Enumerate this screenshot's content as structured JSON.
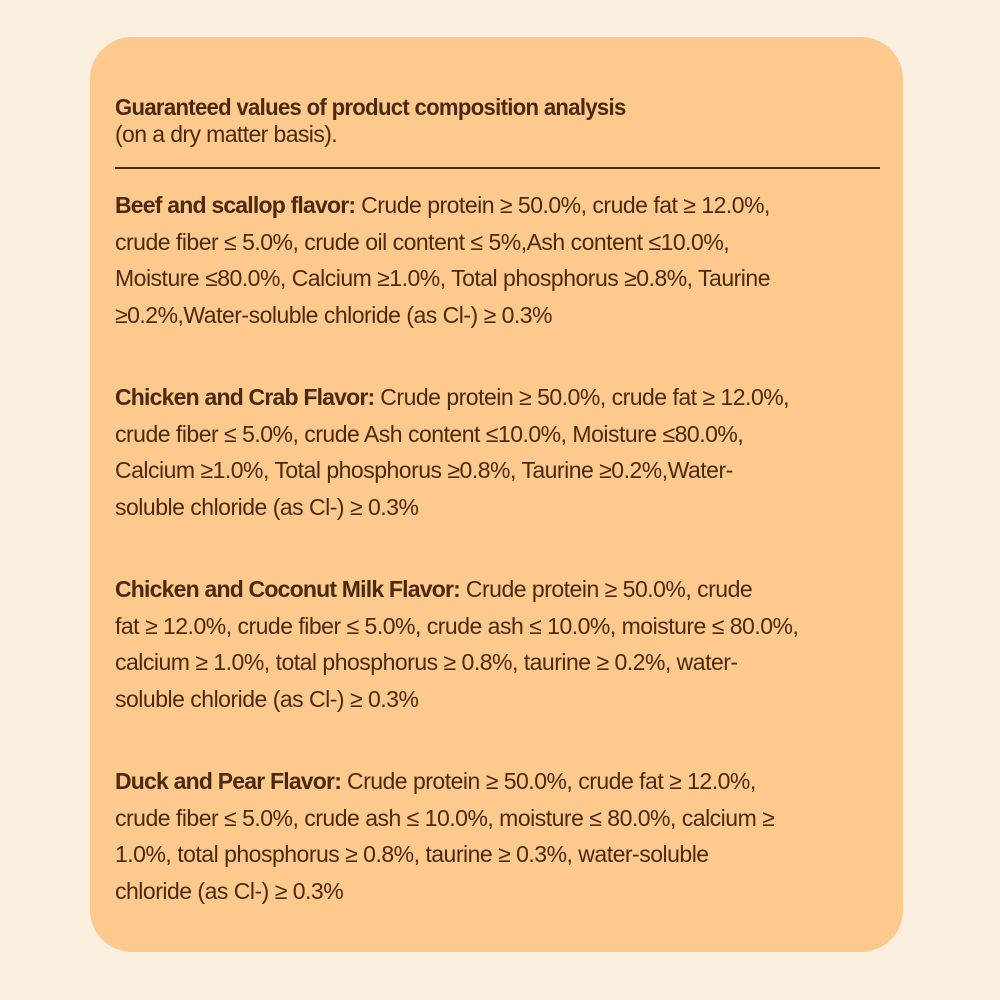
{
  "header": {
    "title": "Guaranteed values of product composition analysis",
    "subtitle": "(on a dry matter basis)."
  },
  "colors": {
    "background": "#fbefe0",
    "card": "#fdc98d",
    "text": "#4a2a10"
  },
  "sections": [
    {
      "label": "Beef and scallop flavor:",
      "lines": [
        " Crude protein ≥ 50.0%, crude fat ≥ 12.0%,",
        "crude fiber ≤ 5.0%, crude oil content ≤ 5%,Ash content ≤10.0%,",
        "Moisture ≤80.0%, Calcium ≥1.0%, Total phosphorus ≥0.8%, Taurine",
        "≥0.2%,Water-soluble chloride (as Cl-) ≥ 0.3%"
      ]
    },
    {
      "label": "Chicken and Crab Flavor:",
      "lines": [
        " Crude protein ≥ 50.0%, crude fat ≥ 12.0%,",
        "crude fiber ≤ 5.0%, crude Ash content ≤10.0%, Moisture ≤80.0%,",
        "Calcium ≥1.0%, Total phosphorus ≥0.8%, Taurine ≥0.2%,Water-",
        "soluble chloride (as Cl-) ≥ 0.3%"
      ]
    },
    {
      "label": "Chicken and Coconut Milk Flavor:",
      "lines": [
        " Crude protein ≥ 50.0%, crude",
        "fat ≥ 12.0%, crude fiber ≤ 5.0%, crude ash ≤ 10.0%, moisture ≤ 80.0%,",
        "calcium ≥ 1.0%, total phosphorus ≥ 0.8%, taurine ≥ 0.2%, water-",
        "soluble chloride (as Cl-) ≥ 0.3%"
      ]
    },
    {
      "label": "Duck and Pear Flavor:",
      "lines": [
        " Crude protein ≥ 50.0%, crude fat ≥ 12.0%,",
        "crude fiber ≤ 5.0%, crude ash ≤ 10.0%, moisture ≤ 80.0%, calcium ≥",
        "1.0%, total phosphorus ≥ 0.8%, taurine ≥ 0.3%, water-soluble",
        "chloride (as Cl-) ≥ 0.3%"
      ]
    }
  ]
}
